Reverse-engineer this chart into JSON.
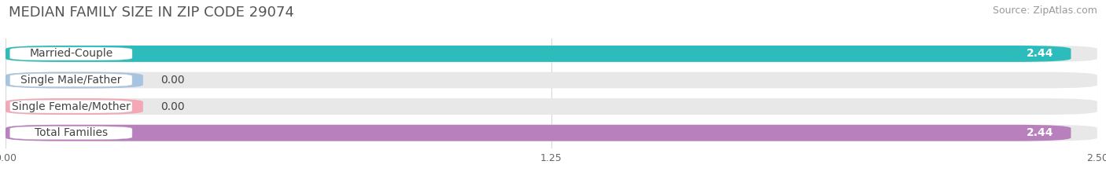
{
  "title": "MEDIAN FAMILY SIZE IN ZIP CODE 29074",
  "source": "Source: ZipAtlas.com",
  "categories": [
    "Married-Couple",
    "Single Male/Father",
    "Single Female/Mother",
    "Total Families"
  ],
  "values": [
    2.44,
    0.0,
    0.0,
    2.44
  ],
  "bar_colors": [
    "#2bbcbb",
    "#a8c4e0",
    "#f4a7b5",
    "#b880bc"
  ],
  "bar_bg_color": "#e8e8e8",
  "xlim_max": 2.5,
  "xticks": [
    0.0,
    1.25,
    2.5
  ],
  "xtick_labels": [
    "0.00",
    "1.25",
    "2.50"
  ],
  "title_fontsize": 13,
  "source_fontsize": 9,
  "bar_label_fontsize": 10,
  "value_fontsize": 10,
  "figsize": [
    14.06,
    2.33
  ],
  "dpi": 100,
  "bg_color": "#ffffff",
  "title_color": "#555555",
  "source_color": "#999999",
  "label_text_color": "#444444",
  "grid_color": "#d8d8d8"
}
